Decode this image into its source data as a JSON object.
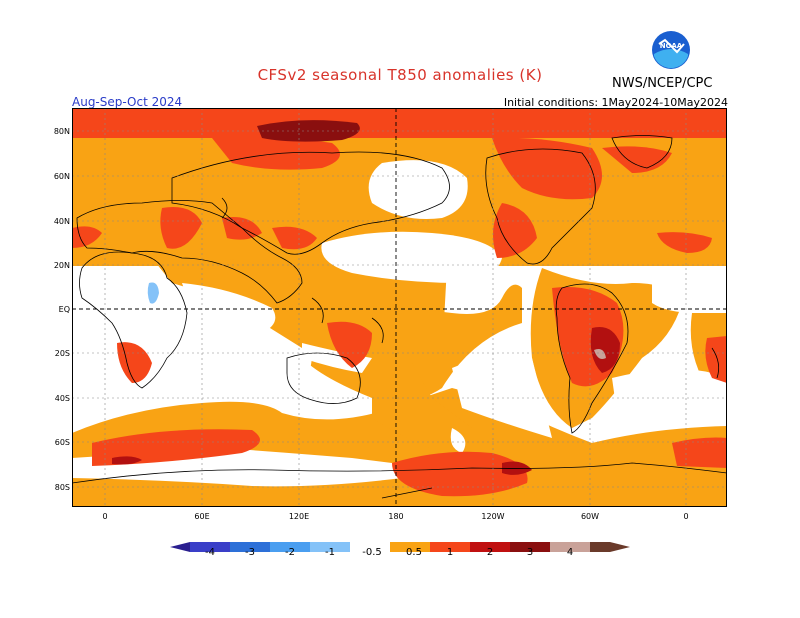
{
  "header": {
    "title": "CFSv2 seasonal T850 anomalies (K)",
    "period": "Aug-Sep-Oct 2024",
    "init": "Initial conditions: 1May2024-10May2024",
    "agency": "NWS/NCEP/CPC",
    "logo_text": "NOAA"
  },
  "map": {
    "lat_labels": [
      "80N",
      "60N",
      "40N",
      "20N",
      "EQ",
      "20S",
      "40S",
      "60S",
      "80S"
    ],
    "lon_labels": [
      "0",
      "60E",
      "120E",
      "180",
      "120W",
      "60W",
      "0"
    ]
  },
  "legend": {
    "labels": [
      "-4",
      "-3",
      "-2",
      "-1",
      "-0.5",
      "0.5",
      "1",
      "2",
      "3",
      "4"
    ],
    "colors": [
      "#2a1f8f",
      "#3a3fc8",
      "#2d70d8",
      "#4a9ef0",
      "#84c2f8",
      "#ffffff",
      "#f8a010",
      "#f84010",
      "#c01010",
      "#8a0f0f",
      "#c09080",
      "#6a3a2a"
    ]
  },
  "colors": {
    "orange": "#f9a314",
    "red": "#f5461a",
    "darkred": "#b21010",
    "maroon": "#8a0f0f",
    "pink": "#c9a299",
    "lightblue": "#84c2f8",
    "title": "#d8332a",
    "period": "#2a3cc8"
  }
}
